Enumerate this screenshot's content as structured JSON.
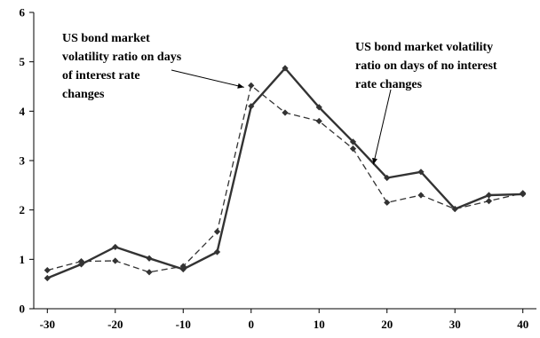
{
  "chart_data": {
    "type": "line",
    "x": [
      -30,
      -25,
      -20,
      -15,
      -10,
      -5,
      0,
      5,
      10,
      15,
      20,
      25,
      30,
      35,
      40
    ],
    "series": [
      {
        "name": "",
        "style": "solid",
        "values": [
          0.62,
          0.9,
          1.25,
          1.02,
          0.8,
          1.15,
          4.1,
          4.87,
          4.08,
          3.38,
          2.65,
          2.77,
          2.02,
          2.3,
          2.32
        ]
      },
      {
        "name": "",
        "style": "dashed",
        "values": [
          0.78,
          0.96,
          0.97,
          0.74,
          0.86,
          1.56,
          4.52,
          3.97,
          3.8,
          3.24,
          2.15,
          2.3,
          2.02,
          2.18,
          2.34
        ]
      }
    ],
    "xticks": [
      "-30",
      "-20",
      "-10",
      "0",
      "10",
      "20",
      "30",
      "40"
    ],
    "yticks": [
      "0",
      "1",
      "2",
      "3",
      "4",
      "5",
      "6"
    ],
    "xlim": [
      -32,
      42
    ],
    "ylim": [
      0,
      6
    ],
    "grid": false,
    "annotations": [
      {
        "lines": [
          "US bond market",
          "volatility ratio on days",
          "of interest rate",
          "changes"
        ],
        "points_to": {
          "x": 0,
          "y": 4.52
        }
      },
      {
        "lines": [
          "US bond market volatility",
          "ratio on days of no interest",
          "rate changes"
        ],
        "points_to": {
          "x": 18,
          "y": 2.85
        }
      }
    ],
    "colors": {
      "series": "#333333",
      "axis": "#000000"
    }
  }
}
